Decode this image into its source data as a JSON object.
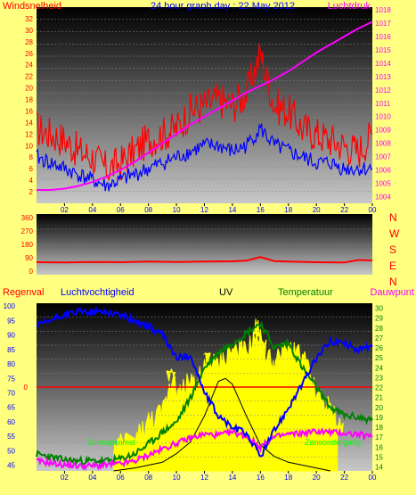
{
  "panel_top": {
    "left_label": "Windsnelheid",
    "title": "24 hour graph day : 22 May 2012",
    "right_label": "Luchtdruk",
    "left_ticks": [
      "2",
      "4",
      "6",
      "8",
      "10",
      "12",
      "14",
      "16",
      "18",
      "20",
      "22",
      "24",
      "26",
      "28",
      "30",
      "32"
    ],
    "right_ticks": [
      "1004",
      "1005",
      "1006",
      "1007",
      "1008",
      "1009",
      "1010",
      "1011",
      "1012",
      "1013",
      "1014",
      "1015",
      "1016",
      "1017",
      "1018"
    ],
    "x_ticks": [
      "02",
      "04",
      "06",
      "08",
      "10",
      "12",
      "14",
      "16",
      "18",
      "20",
      "22",
      "00"
    ]
  },
  "panel_mid": {
    "left_ticks": [
      "0",
      "90",
      "180",
      "270",
      "360"
    ],
    "right_letters": [
      "N",
      "W",
      "S",
      "E",
      "N"
    ],
    "x_ticks": []
  },
  "panel_bottom": {
    "labels": {
      "regen": "Regenval",
      "hum": "Luchtvochtigheid",
      "uv": "UV",
      "temp": "Temperatuur",
      "dew": "Dauwpunt"
    },
    "left_ticks": [
      "45",
      "50",
      "55",
      "60",
      "65",
      "70",
      "75",
      "80",
      "85",
      "90",
      "95",
      "100"
    ],
    "right_ticks": [
      "14",
      "15",
      "16",
      "17",
      "18",
      "19",
      "20",
      "21",
      "22",
      "23",
      "24",
      "25",
      "26",
      "27",
      "28",
      "29",
      "30"
    ],
    "rain_tick": "0",
    "sunrise": "Zonsopkomst",
    "sunset": "Zonsondergang",
    "x_ticks": [
      "02",
      "04",
      "06",
      "08",
      "10",
      "12",
      "14",
      "16",
      "18",
      "20",
      "22",
      "00"
    ]
  },
  "chart_data": [
    {
      "type": "line",
      "title": "24 hour graph day : 22 May 2012",
      "x_unit": "hour",
      "xlim": [
        0,
        24
      ],
      "ylabel_left": "Windsnelheid",
      "ylim_left": [
        0,
        34
      ],
      "ylabel_right": "Luchtdruk",
      "ylim_right": [
        1003.5,
        1018.2
      ],
      "colors": {
        "wind_gust": "#ff0000",
        "wind_avg": "#0000ff",
        "pressure": "#ff00ff"
      },
      "series": [
        {
          "name": "wind_gust",
          "axis": "left",
          "x": [
            0,
            1,
            2,
            3,
            4,
            5,
            6,
            7,
            8,
            9,
            10,
            11,
            12,
            13,
            14,
            15,
            16,
            17,
            18,
            19,
            20,
            21,
            22,
            23,
            24
          ],
          "values": [
            13,
            12,
            11,
            9,
            8,
            6,
            7,
            9,
            11,
            12,
            13,
            16,
            17,
            18,
            17,
            19,
            26,
            17,
            16,
            13,
            12,
            11,
            10,
            9,
            12
          ]
        },
        {
          "name": "wind_avg",
          "axis": "left",
          "x": [
            0,
            1,
            2,
            3,
            4,
            5,
            6,
            7,
            8,
            9,
            10,
            11,
            12,
            13,
            14,
            15,
            16,
            17,
            18,
            19,
            20,
            21,
            22,
            23,
            24
          ],
          "values": [
            8,
            7,
            6,
            5,
            4,
            3,
            4,
            5,
            6,
            7,
            8,
            9,
            10,
            10,
            9,
            10,
            13,
            10,
            9,
            8,
            7,
            7,
            6,
            6,
            6
          ]
        },
        {
          "name": "pressure",
          "axis": "right",
          "x": [
            0,
            1,
            2,
            3,
            4,
            5,
            6,
            7,
            8,
            9,
            10,
            11,
            12,
            13,
            14,
            15,
            16,
            17,
            18,
            19,
            20,
            21,
            22,
            23,
            24
          ],
          "values": [
            1004.5,
            1004.5,
            1004.6,
            1004.8,
            1005.1,
            1005.5,
            1006.0,
            1006.6,
            1007.3,
            1008.0,
            1008.7,
            1009.4,
            1010.0,
            1010.6,
            1011.2,
            1011.8,
            1012.3,
            1012.8,
            1013.4,
            1014.1,
            1014.8,
            1015.4,
            1016.0,
            1016.6,
            1017.1
          ]
        }
      ]
    },
    {
      "type": "line",
      "x_unit": "hour",
      "xlim": [
        0,
        24
      ],
      "ylabel_left": "",
      "ylim_left": [
        0,
        360
      ],
      "colors": {
        "wind_dir": "#ff0000"
      },
      "series": [
        {
          "name": "wind_dir",
          "x": [
            0,
            2,
            4,
            6,
            8,
            10,
            12,
            14,
            15,
            16,
            17,
            18,
            20,
            22,
            23,
            24
          ],
          "values": [
            60,
            58,
            62,
            60,
            65,
            62,
            64,
            66,
            70,
            95,
            68,
            64,
            60,
            58,
            75,
            72
          ]
        }
      ]
    },
    {
      "type": "line",
      "x_unit": "hour",
      "xlim": [
        0,
        24
      ],
      "ylabel_left": "Luchtvochtigheid",
      "ylim_left": [
        43,
        101
      ],
      "ylabel_right": "Temperatuur",
      "ylim_right": [
        13.6,
        30.5
      ],
      "rain_value": 0,
      "sunrise_hour": 5.5,
      "sunset_hour": 21.5,
      "colors": {
        "humidity": "#0000ff",
        "temperature": "#008000",
        "dewpoint": "#ff00ff",
        "uv": "#ffff00",
        "solar": "#000000",
        "rain": "#ff0000"
      },
      "series": [
        {
          "name": "humidity",
          "axis": "left",
          "x": [
            0,
            1,
            2,
            3,
            4,
            5,
            6,
            7,
            8,
            9,
            10,
            11,
            12,
            13,
            14,
            15,
            16,
            17,
            18,
            19,
            20,
            21,
            22,
            23,
            24
          ],
          "values": [
            93,
            95,
            97,
            98,
            98,
            98,
            97,
            95,
            93,
            90,
            82,
            83,
            70,
            62,
            58,
            56,
            48,
            57,
            65,
            73,
            82,
            88,
            87,
            85,
            86
          ]
        },
        {
          "name": "temperature",
          "axis": "right",
          "x": [
            0,
            1,
            2,
            3,
            4,
            5,
            6,
            7,
            8,
            9,
            10,
            11,
            12,
            13,
            14,
            15,
            16,
            17,
            18,
            19,
            20,
            21,
            22,
            23,
            24
          ],
          "values": [
            15.3,
            15.0,
            14.7,
            14.6,
            14.6,
            14.6,
            14.8,
            15.3,
            16.3,
            17.5,
            18.5,
            21.0,
            24.0,
            25.5,
            26.5,
            27.5,
            28.5,
            26.0,
            26.5,
            24.0,
            22.0,
            20.0,
            19.2,
            19.0,
            18.7
          ]
        },
        {
          "name": "dewpoint",
          "axis": "right",
          "x": [
            0,
            1,
            2,
            3,
            4,
            5,
            6,
            7,
            8,
            9,
            10,
            11,
            12,
            13,
            14,
            15,
            16,
            17,
            18,
            19,
            20,
            21,
            22,
            23,
            24
          ],
          "values": [
            14.6,
            14.4,
            14.2,
            14.1,
            14.1,
            14.2,
            14.3,
            14.6,
            15.2,
            15.8,
            16.4,
            16.9,
            17.3,
            17.2,
            17.5,
            17.1,
            16.0,
            17.0,
            17.3,
            17.4,
            17.6,
            17.5,
            17.4,
            17.3,
            17.0
          ]
        },
        {
          "name": "uv",
          "axis": "left",
          "x": [
            5.5,
            7,
            8,
            9,
            9.3,
            10,
            11,
            11.5,
            12,
            13,
            14,
            15,
            15.5,
            16,
            17,
            18,
            19,
            20,
            21,
            21.5
          ],
          "values": [
            50,
            54,
            60,
            63,
            80,
            68,
            75,
            74,
            82,
            80,
            85,
            84,
            93,
            85,
            80,
            86,
            83,
            70,
            64,
            56
          ]
        },
        {
          "name": "solar",
          "axis": "left",
          "x": [
            5.5,
            7,
            9,
            10,
            11,
            12,
            13,
            13.5,
            14,
            15,
            16,
            17,
            18,
            19,
            20,
            21
          ],
          "values": [
            43,
            44,
            46,
            49,
            53,
            62,
            74,
            75,
            73,
            62,
            52,
            48,
            46,
            45,
            44,
            43
          ]
        }
      ]
    }
  ]
}
